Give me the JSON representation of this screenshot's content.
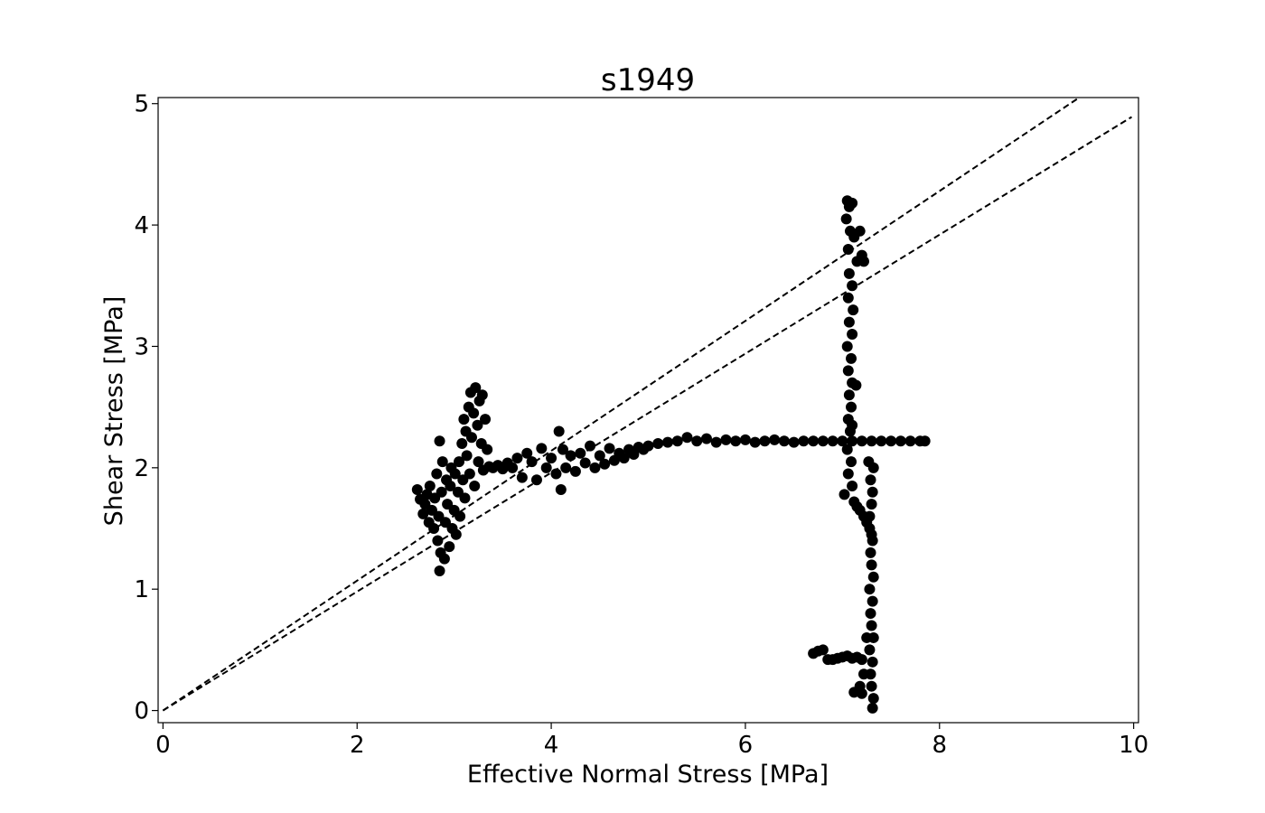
{
  "chart_data": {
    "type": "scatter",
    "title": "s1949",
    "xlabel": "Effective Normal Stress [MPa]",
    "ylabel": "Shear Stress [MPa]",
    "xlim": [
      -0.05,
      10.05
    ],
    "ylim": [
      -0.1,
      5.05
    ],
    "xticks": [
      0,
      2,
      4,
      6,
      8,
      10
    ],
    "yticks": [
      0,
      1,
      2,
      3,
      4,
      5
    ],
    "grid": false,
    "legend": "none",
    "marker_color": "#000000",
    "line_color": "#000000",
    "reference_lines": [
      {
        "style": "dashed",
        "slope": 0.535,
        "intercept": 0
      },
      {
        "style": "dashed",
        "slope": 0.49,
        "intercept": 0
      }
    ],
    "series": [
      {
        "values": [
          [
            2.62,
            1.82
          ],
          [
            2.65,
            1.74
          ],
          [
            2.68,
            1.62
          ],
          [
            2.7,
            1.7
          ],
          [
            2.72,
            1.78
          ],
          [
            2.74,
            1.55
          ],
          [
            2.75,
            1.85
          ],
          [
            2.77,
            1.65
          ],
          [
            2.79,
            1.5
          ],
          [
            2.8,
            1.75
          ],
          [
            2.82,
            1.95
          ],
          [
            2.83,
            1.4
          ],
          [
            2.84,
            1.6
          ],
          [
            2.85,
            2.22
          ],
          [
            2.85,
            1.15
          ],
          [
            2.86,
            1.3
          ],
          [
            2.87,
            1.8
          ],
          [
            2.88,
            2.05
          ],
          [
            2.9,
            1.25
          ],
          [
            2.91,
            1.55
          ],
          [
            2.92,
            1.9
          ],
          [
            2.93,
            1.7
          ],
          [
            2.95,
            1.35
          ],
          [
            2.96,
            1.85
          ],
          [
            2.97,
            2.0
          ],
          [
            2.98,
            1.5
          ],
          [
            3.0,
            1.65
          ],
          [
            3.01,
            1.95
          ],
          [
            3.02,
            1.45
          ],
          [
            3.04,
            1.8
          ],
          [
            3.05,
            2.05
          ],
          [
            3.06,
            1.6
          ],
          [
            3.08,
            2.2
          ],
          [
            3.09,
            1.9
          ],
          [
            3.1,
            2.4
          ],
          [
            3.11,
            1.75
          ],
          [
            3.12,
            2.3
          ],
          [
            3.13,
            2.1
          ],
          [
            3.15,
            2.5
          ],
          [
            3.16,
            1.95
          ],
          [
            3.17,
            2.62
          ],
          [
            3.18,
            2.25
          ],
          [
            3.2,
            2.45
          ],
          [
            3.21,
            1.85
          ],
          [
            3.22,
            2.66
          ],
          [
            3.24,
            2.35
          ],
          [
            3.25,
            2.05
          ],
          [
            3.26,
            2.55
          ],
          [
            3.28,
            2.2
          ],
          [
            3.29,
            2.6
          ],
          [
            3.3,
            1.98
          ],
          [
            3.32,
            2.4
          ],
          [
            3.34,
            2.15
          ],
          [
            3.36,
            2.01
          ],
          [
            3.4,
            2.0
          ],
          [
            3.45,
            2.02
          ],
          [
            3.5,
            1.99
          ],
          [
            3.55,
            2.04
          ],
          [
            3.6,
            2.0
          ],
          [
            3.65,
            2.08
          ],
          [
            3.7,
            1.92
          ],
          [
            3.75,
            2.12
          ],
          [
            3.8,
            2.05
          ],
          [
            3.85,
            1.9
          ],
          [
            3.9,
            2.16
          ],
          [
            3.95,
            2.0
          ],
          [
            4.0,
            2.08
          ],
          [
            4.05,
            1.95
          ],
          [
            4.08,
            2.3
          ],
          [
            4.1,
            1.82
          ],
          [
            4.12,
            2.15
          ],
          [
            4.15,
            2.0
          ],
          [
            4.2,
            2.1
          ],
          [
            4.25,
            1.97
          ],
          [
            4.3,
            2.12
          ],
          [
            4.35,
            2.04
          ],
          [
            4.4,
            2.18
          ],
          [
            4.45,
            2.0
          ],
          [
            4.5,
            2.1
          ],
          [
            4.55,
            2.03
          ],
          [
            4.6,
            2.16
          ],
          [
            4.65,
            2.06
          ],
          [
            4.7,
            2.12
          ],
          [
            4.75,
            2.08
          ],
          [
            4.8,
            2.15
          ],
          [
            4.85,
            2.11
          ],
          [
            4.9,
            2.17
          ],
          [
            4.95,
            2.15
          ],
          [
            5.0,
            2.18
          ],
          [
            5.1,
            2.2
          ],
          [
            5.2,
            2.21
          ],
          [
            5.3,
            2.22
          ],
          [
            5.4,
            2.25
          ],
          [
            5.5,
            2.22
          ],
          [
            5.6,
            2.24
          ],
          [
            5.7,
            2.21
          ],
          [
            5.8,
            2.23
          ],
          [
            5.9,
            2.22
          ],
          [
            6.0,
            2.23
          ],
          [
            6.1,
            2.21
          ],
          [
            6.2,
            2.22
          ],
          [
            6.3,
            2.23
          ],
          [
            6.4,
            2.22
          ],
          [
            6.5,
            2.21
          ],
          [
            6.6,
            2.22
          ],
          [
            6.7,
            2.22
          ],
          [
            6.8,
            2.22
          ],
          [
            6.9,
            2.22
          ],
          [
            7.0,
            2.22
          ],
          [
            7.1,
            2.22
          ],
          [
            7.2,
            2.22
          ],
          [
            7.3,
            2.22
          ],
          [
            7.4,
            2.22
          ],
          [
            7.5,
            2.22
          ],
          [
            7.6,
            2.22
          ],
          [
            7.7,
            2.22
          ],
          [
            7.8,
            2.22
          ],
          [
            7.85,
            2.22
          ],
          [
            7.05,
            4.2
          ],
          [
            7.07,
            4.15
          ],
          [
            7.1,
            4.18
          ],
          [
            7.04,
            4.05
          ],
          [
            7.08,
            3.95
          ],
          [
            7.12,
            3.9
          ],
          [
            7.06,
            3.8
          ],
          [
            7.18,
            3.95
          ],
          [
            7.2,
            3.75
          ],
          [
            7.22,
            3.7
          ],
          [
            7.15,
            3.7
          ],
          [
            7.07,
            3.6
          ],
          [
            7.1,
            3.5
          ],
          [
            7.06,
            3.4
          ],
          [
            7.11,
            3.3
          ],
          [
            7.07,
            3.2
          ],
          [
            7.1,
            3.1
          ],
          [
            7.05,
            3.0
          ],
          [
            7.09,
            2.9
          ],
          [
            7.06,
            2.8
          ],
          [
            7.1,
            2.7
          ],
          [
            7.14,
            2.68
          ],
          [
            7.07,
            2.6
          ],
          [
            7.09,
            2.5
          ],
          [
            7.06,
            2.4
          ],
          [
            7.1,
            2.35
          ],
          [
            7.08,
            2.3
          ],
          [
            7.05,
            2.15
          ],
          [
            7.09,
            2.05
          ],
          [
            7.06,
            1.95
          ],
          [
            7.1,
            1.85
          ],
          [
            7.02,
            1.78
          ],
          [
            7.12,
            1.72
          ],
          [
            7.15,
            1.68
          ],
          [
            7.18,
            1.65
          ],
          [
            7.22,
            1.6
          ],
          [
            7.25,
            1.55
          ],
          [
            7.28,
            1.5
          ],
          [
            7.3,
            1.45
          ],
          [
            7.27,
            2.05
          ],
          [
            7.32,
            2.0
          ],
          [
            7.29,
            1.9
          ],
          [
            7.31,
            1.8
          ],
          [
            7.3,
            1.7
          ],
          [
            7.28,
            1.6
          ],
          [
            7.31,
            1.4
          ],
          [
            7.29,
            1.3
          ],
          [
            7.3,
            1.2
          ],
          [
            7.32,
            1.1
          ],
          [
            7.28,
            1.0
          ],
          [
            7.31,
            0.9
          ],
          [
            7.29,
            0.8
          ],
          [
            7.3,
            0.7
          ],
          [
            7.32,
            0.6
          ],
          [
            7.28,
            0.5
          ],
          [
            7.31,
            0.4
          ],
          [
            7.29,
            0.3
          ],
          [
            7.3,
            0.2
          ],
          [
            7.32,
            0.1
          ],
          [
            7.31,
            0.02
          ],
          [
            7.25,
            0.6
          ],
          [
            7.22,
            0.3
          ],
          [
            7.18,
            0.2
          ],
          [
            7.12,
            0.15
          ],
          [
            7.2,
            0.14
          ],
          [
            6.7,
            0.47
          ],
          [
            6.75,
            0.49
          ],
          [
            6.8,
            0.5
          ],
          [
            6.85,
            0.42
          ],
          [
            6.9,
            0.42
          ],
          [
            6.95,
            0.43
          ],
          [
            7.0,
            0.44
          ],
          [
            7.05,
            0.45
          ],
          [
            7.1,
            0.43
          ],
          [
            7.15,
            0.44
          ],
          [
            7.2,
            0.42
          ]
        ]
      }
    ]
  }
}
